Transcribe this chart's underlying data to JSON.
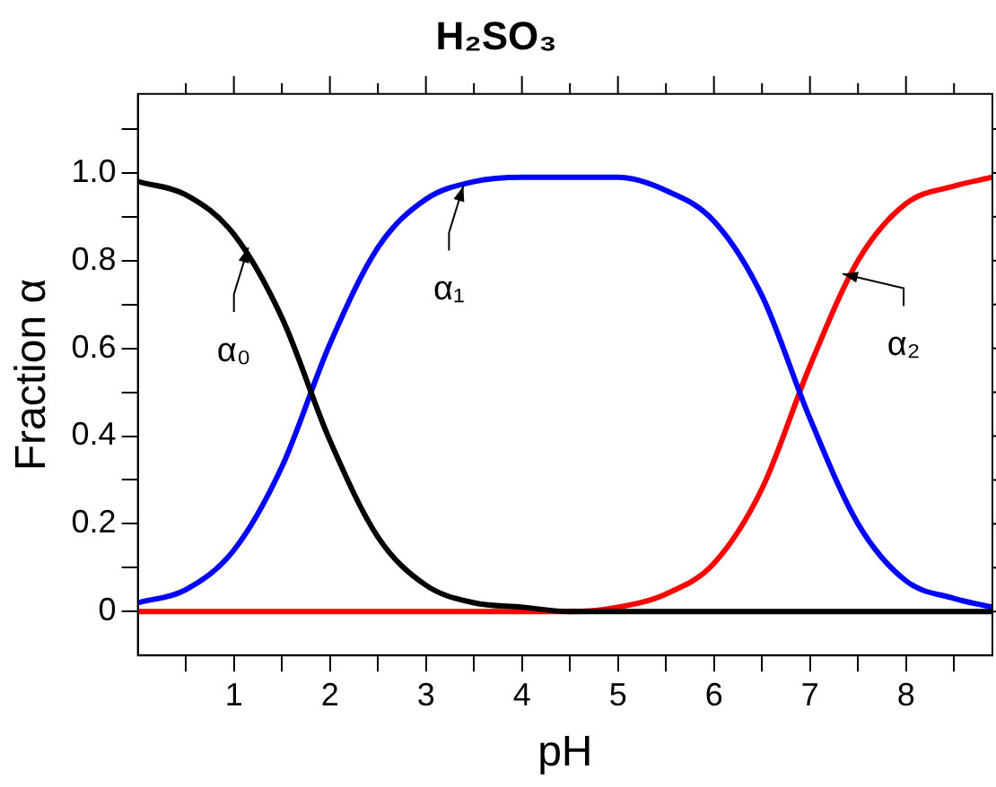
{
  "chart_data": {
    "type": "line",
    "title": "H₂SO₃",
    "xlabel": "pH",
    "ylabel": "Fraction α",
    "x": [
      0,
      0.5,
      1,
      1.5,
      2,
      2.5,
      3,
      3.5,
      4,
      4.5,
      5,
      5.5,
      6,
      6.5,
      7,
      7.5,
      8,
      8.5,
      8.9
    ],
    "series": [
      {
        "color": "#000000",
        "values": [
          0.98,
          0.95,
          0.86,
          0.67,
          0.39,
          0.17,
          0.06,
          0.02,
          0.01,
          0,
          0,
          0,
          0,
          0,
          0,
          0,
          0,
          0,
          0
        ]
      },
      {
        "color": "#0000ff",
        "values": [
          0.02,
          0.05,
          0.14,
          0.33,
          0.61,
          0.83,
          0.94,
          0.98,
          0.99,
          0.99,
          0.99,
          0.96,
          0.89,
          0.72,
          0.44,
          0.2,
          0.07,
          0.03,
          0.01
        ]
      },
      {
        "color": "#ff0000",
        "values": [
          0,
          0,
          0,
          0,
          0,
          0,
          0,
          0,
          0,
          0,
          0.01,
          0.04,
          0.11,
          0.28,
          0.56,
          0.8,
          0.93,
          0.97,
          0.99
        ]
      }
    ],
    "xlim": [
      0,
      8.9
    ],
    "ylim": [
      -0.1,
      1.18
    ],
    "xticks": [
      {
        "value": 0.5,
        "label": null
      },
      1,
      {
        "value": 1.5,
        "label": null
      },
      2,
      {
        "value": 2.5,
        "label": null
      },
      3,
      {
        "value": 3.5,
        "label": null
      },
      4,
      {
        "value": 4.5,
        "label": null
      },
      5,
      {
        "value": 5.5,
        "label": null
      },
      6,
      {
        "value": 6.5,
        "label": null
      },
      7,
      {
        "value": 7.5,
        "label": null
      },
      8,
      {
        "value": 8.5,
        "label": null
      }
    ],
    "yticks": [
      0,
      {
        "value": 0.1,
        "label": null
      },
      0.2,
      {
        "value": 0.3,
        "label": null
      },
      0.4,
      {
        "value": 0.5,
        "label": null
      },
      0.6,
      {
        "value": 0.7,
        "label": null
      },
      0.8,
      {
        "value": 0.9,
        "label": null
      },
      {
        "value": 1,
        "label": "1.0"
      },
      {
        "value": 1.1,
        "label": null
      }
    ],
    "annotations": [
      {
        "text": "α₀",
        "x": 1.15,
        "y": 0.83
      },
      {
        "text": "α₁",
        "x": 3.39,
        "y": 0.97
      },
      {
        "text": "α₂",
        "x": 7.34,
        "y": 0.77
      }
    ],
    "grid": false,
    "legend": false,
    "marker": "none",
    "line_style": "solid"
  }
}
